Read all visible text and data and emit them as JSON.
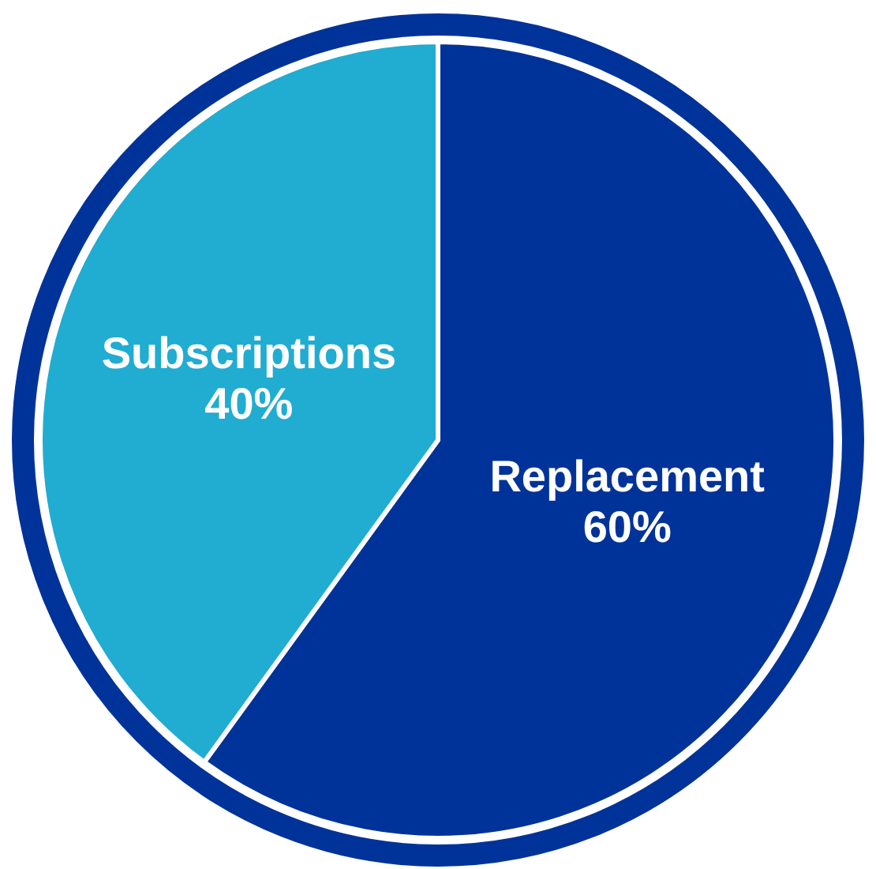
{
  "chart_data": {
    "type": "pie",
    "categories": [
      "Replacement",
      "Subscriptions"
    ],
    "values": [
      60,
      40
    ],
    "colors": [
      "#003399",
      "#21acd1"
    ],
    "value_labels": [
      "60%",
      "40%"
    ]
  }
}
